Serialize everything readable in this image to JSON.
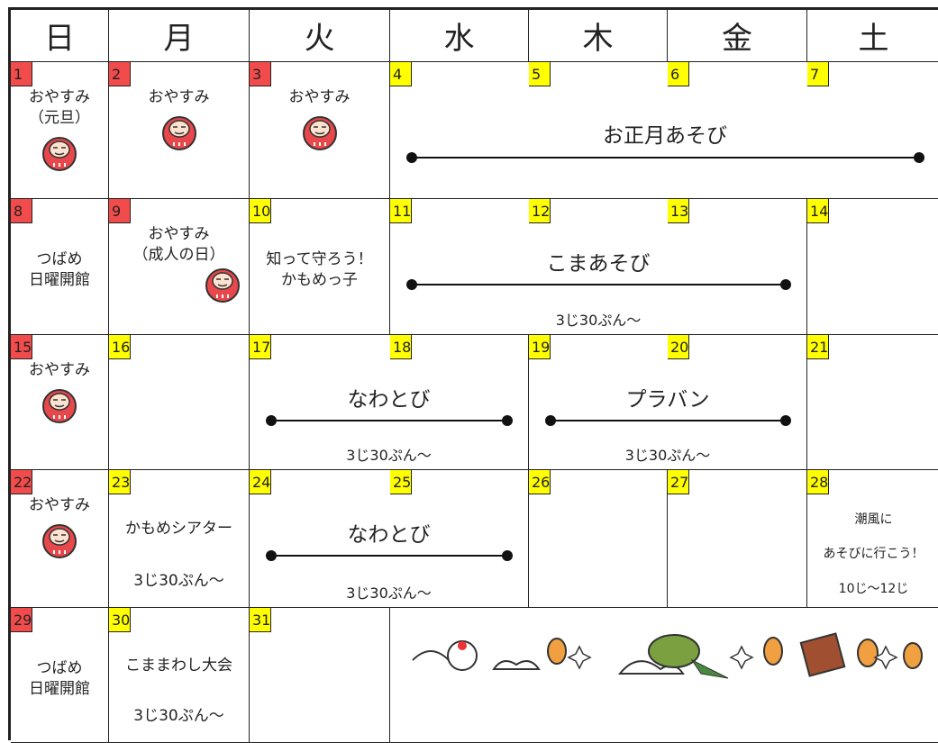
{
  "calendar": {
    "weekdays": [
      "日",
      "月",
      "火",
      "水",
      "木",
      "金",
      "土"
    ],
    "colors": {
      "holiday": "#f24b4b",
      "normal": "#ffff00"
    },
    "days": [
      {
        "date": 1,
        "holiday": true,
        "lines": [
          "おやすみ",
          "（元旦）"
        ]
      },
      {
        "date": 2,
        "holiday": true,
        "lines": [
          "おやすみ"
        ]
      },
      {
        "date": 3,
        "holiday": true,
        "lines": [
          "おやすみ"
        ]
      },
      {
        "date": 4,
        "holiday": false
      },
      {
        "date": 5,
        "holiday": false
      },
      {
        "date": 6,
        "holiday": false
      },
      {
        "date": 7,
        "holiday": false
      },
      {
        "date": 8,
        "holiday": true,
        "lines": [
          "つばめ",
          "日曜開館"
        ]
      },
      {
        "date": 9,
        "holiday": true,
        "lines": [
          "おやすみ",
          "（成人の日）"
        ]
      },
      {
        "date": 10,
        "holiday": false,
        "lines": [
          "知って守ろう！",
          "かもめっ子"
        ]
      },
      {
        "date": 11,
        "holiday": false
      },
      {
        "date": 12,
        "holiday": false
      },
      {
        "date": 13,
        "holiday": false
      },
      {
        "date": 14,
        "holiday": false
      },
      {
        "date": 15,
        "holiday": true,
        "lines": [
          "おやすみ"
        ]
      },
      {
        "date": 16,
        "holiday": false
      },
      {
        "date": 17,
        "holiday": false
      },
      {
        "date": 18,
        "holiday": false
      },
      {
        "date": 19,
        "holiday": false
      },
      {
        "date": 20,
        "holiday": false
      },
      {
        "date": 21,
        "holiday": false
      },
      {
        "date": 22,
        "holiday": true,
        "lines": [
          "おやすみ"
        ]
      },
      {
        "date": 23,
        "holiday": false,
        "lines": [
          "かもめシアター",
          "3じ30ぷん〜"
        ]
      },
      {
        "date": 24,
        "holiday": false
      },
      {
        "date": 25,
        "holiday": false
      },
      {
        "date": 26,
        "holiday": false
      },
      {
        "date": 27,
        "holiday": false
      },
      {
        "date": 28,
        "holiday": false,
        "lines": [
          "潮風に",
          "あそびに行こう！",
          "10じ〜12じ"
        ]
      },
      {
        "date": 29,
        "holiday": true,
        "lines": [
          "つばめ",
          "日曜開館"
        ]
      },
      {
        "date": 30,
        "holiday": false,
        "lines": [
          "こままわし大会",
          "3じ30ぷん〜"
        ]
      },
      {
        "date": 31,
        "holiday": false
      }
    ],
    "events": [
      {
        "title": "お正月あそび"
      },
      {
        "title": "こまあそび",
        "time": "3じ30ぷん〜"
      },
      {
        "title": "なわとび",
        "time": "3じ30ぷん〜"
      },
      {
        "title": "プラバン",
        "time": "3じ30ぷん〜"
      },
      {
        "title": "なわとび",
        "time": "3じ30ぷん〜"
      }
    ]
  }
}
